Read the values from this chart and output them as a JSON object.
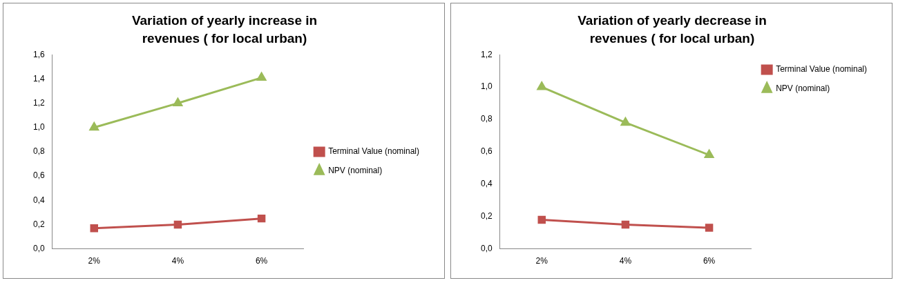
{
  "chart_data": [
    {
      "type": "line",
      "title": "Variation of yearly increase in revenues  ( for local urban)",
      "categories": [
        "2%",
        "4%",
        "6%"
      ],
      "series": [
        {
          "name": "Terminal Value (nominal)",
          "color": "#c0504d",
          "marker": "square",
          "values": [
            0.17,
            0.2,
            0.25
          ]
        },
        {
          "name": "NPV (nominal)",
          "color": "#9bbb59",
          "marker": "triangle",
          "values": [
            1.0,
            1.2,
            1.41
          ]
        }
      ],
      "ylim": [
        0,
        1.6
      ],
      "yticks": [
        {
          "value": 0,
          "label": "0,0"
        },
        {
          "value": 0.2,
          "label": "0,2"
        },
        {
          "value": 0.4,
          "label": "0,4"
        },
        {
          "value": 0.6,
          "label": "0,6"
        },
        {
          "value": 0.8,
          "label": "0,8"
        },
        {
          "value": 1.0,
          "label": "1,0"
        },
        {
          "value": 1.2,
          "label": "1,2"
        },
        {
          "value": 1.4,
          "label": "1,4"
        },
        {
          "value": 1.6,
          "label": "1,6"
        }
      ],
      "grid": false,
      "legend": "right"
    },
    {
      "type": "line",
      "title": "Variation of yearly decrease in revenues  ( for local urban)",
      "categories": [
        "2%",
        "4%",
        "6%"
      ],
      "series": [
        {
          "name": "Terminal Value (nominal)",
          "color": "#c0504d",
          "marker": "square",
          "values": [
            0.18,
            0.15,
            0.13
          ]
        },
        {
          "name": "NPV (nominal)",
          "color": "#9bbb59",
          "marker": "triangle",
          "values": [
            1.0,
            0.78,
            0.58
          ]
        }
      ],
      "ylim": [
        0,
        1.2
      ],
      "yticks": [
        {
          "value": 0,
          "label": "0,0"
        },
        {
          "value": 0.2,
          "label": "0,2"
        },
        {
          "value": 0.4,
          "label": "0,4"
        },
        {
          "value": 0.6,
          "label": "0,6"
        },
        {
          "value": 0.8,
          "label": "0,8"
        },
        {
          "value": 1.0,
          "label": "1,0"
        },
        {
          "value": 1.2,
          "label": "1,2"
        }
      ],
      "grid": false,
      "legend": "top right"
    }
  ]
}
